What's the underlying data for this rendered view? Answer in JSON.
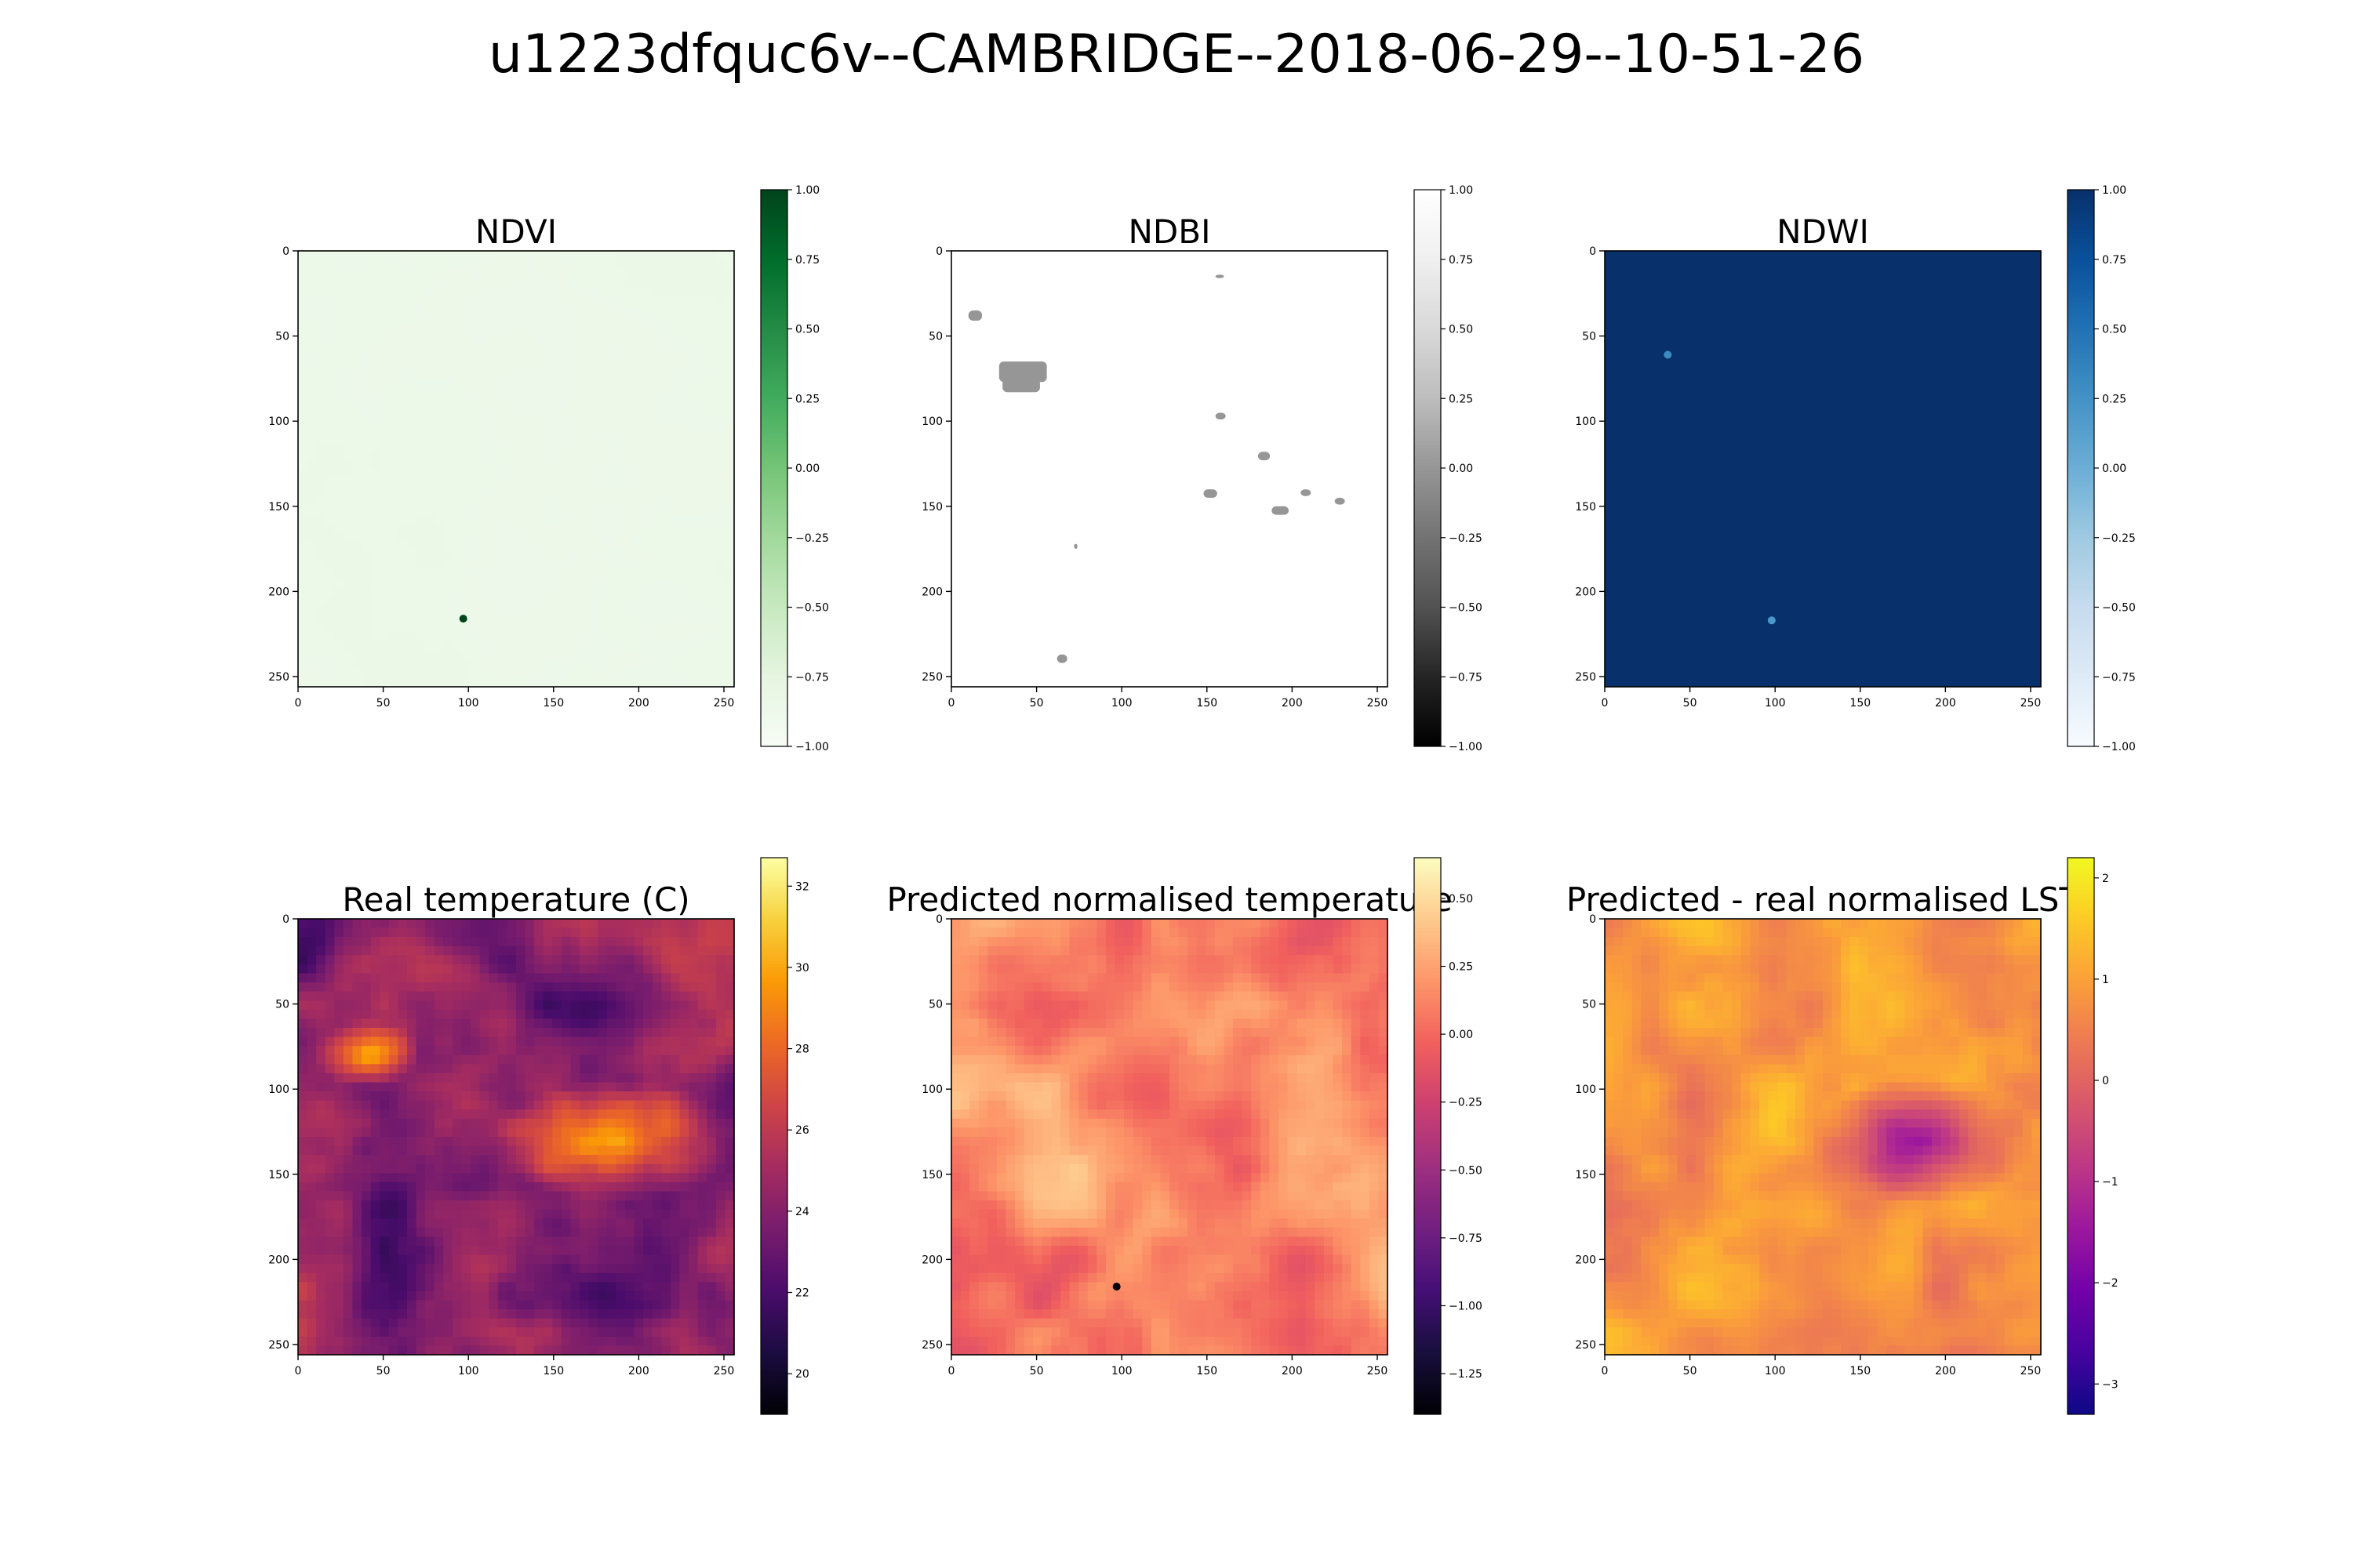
{
  "suptitle": "u1223dfquc6v--CAMBRIDGE--2018-06-29--10-51-26",
  "chart_data": [
    {
      "type": "heatmap",
      "title": "NDVI",
      "colormap": "Greens",
      "colorbar_range": [
        -1.0,
        1.0
      ],
      "colorbar_ticks": [
        "1.00",
        "0.75",
        "0.50",
        "0.25",
        "0.00",
        "−0.25",
        "−0.50",
        "−0.75",
        "−1.00"
      ],
      "x_ticks": [
        "0",
        "50",
        "100",
        "150",
        "200",
        "250"
      ],
      "y_ticks": [
        "0",
        "50",
        "100",
        "150",
        "200",
        "250"
      ],
      "grid_size": [
        256,
        256
      ],
      "typical_value": -0.85,
      "highlights": [
        {
          "x": 97,
          "y": 216,
          "value": 1.0
        }
      ]
    },
    {
      "type": "heatmap",
      "title": "NDBI",
      "colormap": "Greys_r",
      "colorbar_range": [
        -1.0,
        1.0
      ],
      "colorbar_ticks": [
        "1.00",
        "0.75",
        "0.50",
        "0.25",
        "0.00",
        "−0.25",
        "−0.50",
        "−0.75",
        "−1.00"
      ],
      "x_ticks": [
        "0",
        "50",
        "100",
        "150",
        "200",
        "250"
      ],
      "y_ticks": [
        "0",
        "50",
        "100",
        "150",
        "200",
        "250"
      ],
      "grid_size": [
        256,
        256
      ],
      "typical_value": 1.0,
      "patch_value": 0.0,
      "patches": [
        [
          10,
          35,
          8,
          6
        ],
        [
          28,
          65,
          28,
          12
        ],
        [
          30,
          75,
          22,
          8
        ],
        [
          155,
          95,
          6,
          4
        ],
        [
          155,
          14,
          5,
          2
        ],
        [
          148,
          140,
          8,
          5
        ],
        [
          188,
          150,
          10,
          5
        ],
        [
          180,
          118,
          7,
          5
        ],
        [
          205,
          140,
          6,
          4
        ],
        [
          225,
          145,
          6,
          4
        ],
        [
          62,
          237,
          6,
          5
        ],
        [
          72,
          172,
          2,
          3
        ]
      ]
    },
    {
      "type": "heatmap",
      "title": "NDWI",
      "colormap": "Blues",
      "colorbar_range": [
        -1.0,
        1.0
      ],
      "colorbar_ticks": [
        "1.00",
        "0.75",
        "0.50",
        "0.25",
        "0.00",
        "−0.25",
        "−0.50",
        "−0.75",
        "−1.00"
      ],
      "x_ticks": [
        "0",
        "50",
        "100",
        "150",
        "200",
        "250"
      ],
      "y_ticks": [
        "0",
        "50",
        "100",
        "150",
        "200",
        "250"
      ],
      "grid_size": [
        256,
        256
      ],
      "typical_value": 1.0,
      "highlights": [
        {
          "x": 98,
          "y": 217,
          "value": 0.2
        },
        {
          "x": 37,
          "y": 61,
          "value": 0.3
        }
      ]
    },
    {
      "type": "heatmap",
      "title": "Real temperature (C)",
      "colormap": "inferno",
      "colorbar_range": [
        19.0,
        32.7
      ],
      "colorbar_ticks": [
        "32",
        "30",
        "28",
        "26",
        "24",
        "22",
        "20"
      ],
      "x_ticks": [
        "0",
        "50",
        "100",
        "150",
        "200",
        "250"
      ],
      "y_ticks": [
        "0",
        "50",
        "100",
        "150",
        "200",
        "250"
      ],
      "grid_size": [
        256,
        256
      ],
      "typical_value": 23.0
    },
    {
      "type": "heatmap",
      "title": "Predicted normalised temperature",
      "colormap": "magma",
      "colorbar_range": [
        -1.4,
        0.65
      ],
      "colorbar_ticks": [
        "0.50",
        "0.25",
        "0.00",
        "−0.25",
        "−0.50",
        "−0.75",
        "−1.00",
        "−1.25"
      ],
      "x_ticks": [
        "0",
        "50",
        "100",
        "150",
        "200",
        "250"
      ],
      "y_ticks": [
        "0",
        "50",
        "100",
        "150",
        "200",
        "250"
      ],
      "grid_size": [
        256,
        256
      ],
      "typical_value": 0.15,
      "highlights": [
        {
          "x": 97,
          "y": 216,
          "value": -1.4
        }
      ]
    },
    {
      "type": "heatmap",
      "title": "Predicted - real normalised LST",
      "colormap": "plasma",
      "colorbar_range": [
        -3.3,
        2.2
      ],
      "colorbar_ticks": [
        "2",
        "1",
        "0",
        "−1",
        "−2",
        "−3"
      ],
      "x_ticks": [
        "0",
        "50",
        "100",
        "150",
        "200",
        "250"
      ],
      "y_ticks": [
        "0",
        "50",
        "100",
        "150",
        "200",
        "250"
      ],
      "grid_size": [
        256,
        256
      ],
      "typical_value": 1.1
    }
  ]
}
